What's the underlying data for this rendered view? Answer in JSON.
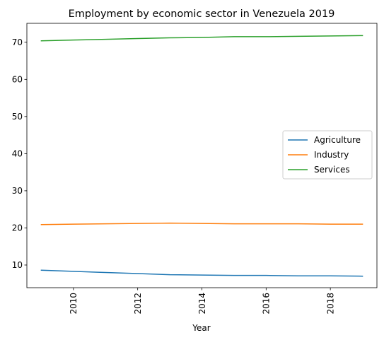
{
  "chart_data": {
    "type": "line",
    "title": "Employment by economic sector in Venezuela 2019",
    "xlabel": "Year",
    "ylabel": "",
    "x": [
      2009,
      2010,
      2011,
      2012,
      2013,
      2014,
      2015,
      2016,
      2017,
      2018,
      2019
    ],
    "xlim": [
      2008.55,
      2019.45
    ],
    "ylim": [
      3.9,
      75.1
    ],
    "x_ticks": [
      2010,
      2012,
      2014,
      2016,
      2018
    ],
    "y_ticks": [
      10,
      20,
      30,
      40,
      50,
      60,
      70
    ],
    "x_tick_rotation": "vertical",
    "grid": false,
    "legend_position": "center-right",
    "series": [
      {
        "name": "Agriculture",
        "color": "#1f77b4",
        "values": [
          8.6,
          8.3,
          8.0,
          7.7,
          7.4,
          7.3,
          7.2,
          7.2,
          7.1,
          7.1,
          7.0
        ]
      },
      {
        "name": "Industry",
        "color": "#ff7f0e",
        "values": [
          20.9,
          21.0,
          21.1,
          21.2,
          21.3,
          21.2,
          21.1,
          21.1,
          21.1,
          21.0,
          21.0
        ]
      },
      {
        "name": "Services",
        "color": "#2ca02c",
        "values": [
          70.4,
          70.6,
          70.8,
          71.0,
          71.2,
          71.3,
          71.5,
          71.5,
          71.6,
          71.7,
          71.8
        ]
      }
    ]
  }
}
